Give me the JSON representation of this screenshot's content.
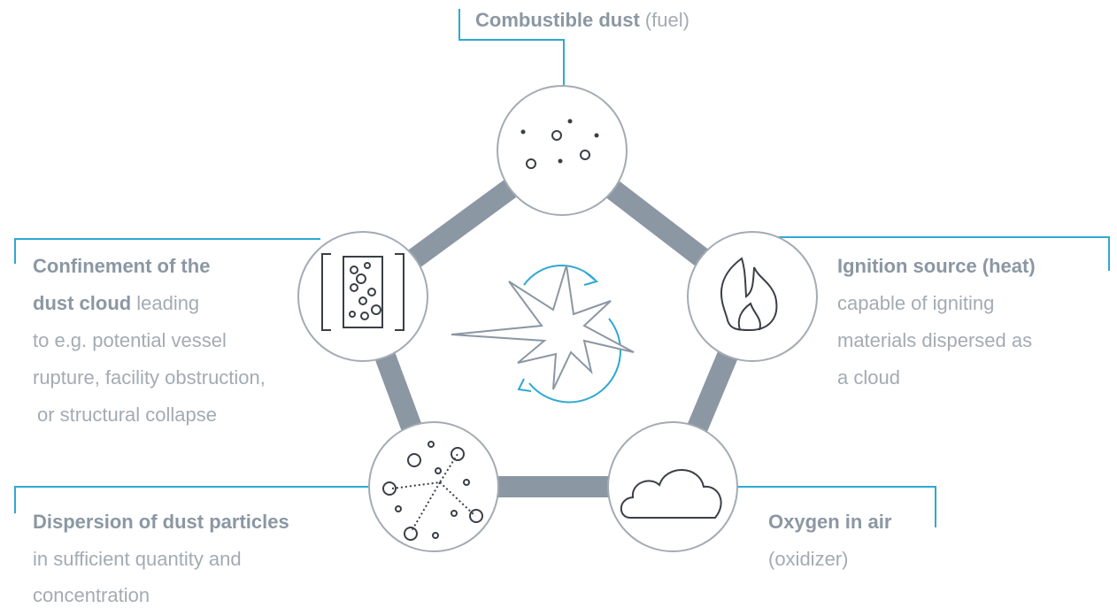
{
  "nodes": [
    {
      "title": "Combustible dust",
      "detail": [
        "(fuel)"
      ]
    },
    {
      "title": "Ignition source (heat)",
      "detail": [
        "capable of igniting",
        "materials dispersed as",
        "a cloud"
      ]
    },
    {
      "title": "Oxygen in air",
      "detail": [
        "(oxidizer)"
      ]
    },
    {
      "title": "Dispersion of dust particles",
      "detail": [
        "in sufficient quantity and",
        "concentration"
      ]
    },
    {
      "title": [
        "Confinement of the",
        "dust cloud"
      ],
      "detail": [
        "leading",
        "to e.g. potential vessel",
        "rupture, facility obstruction,",
        "or structural collapse"
      ]
    }
  ]
}
